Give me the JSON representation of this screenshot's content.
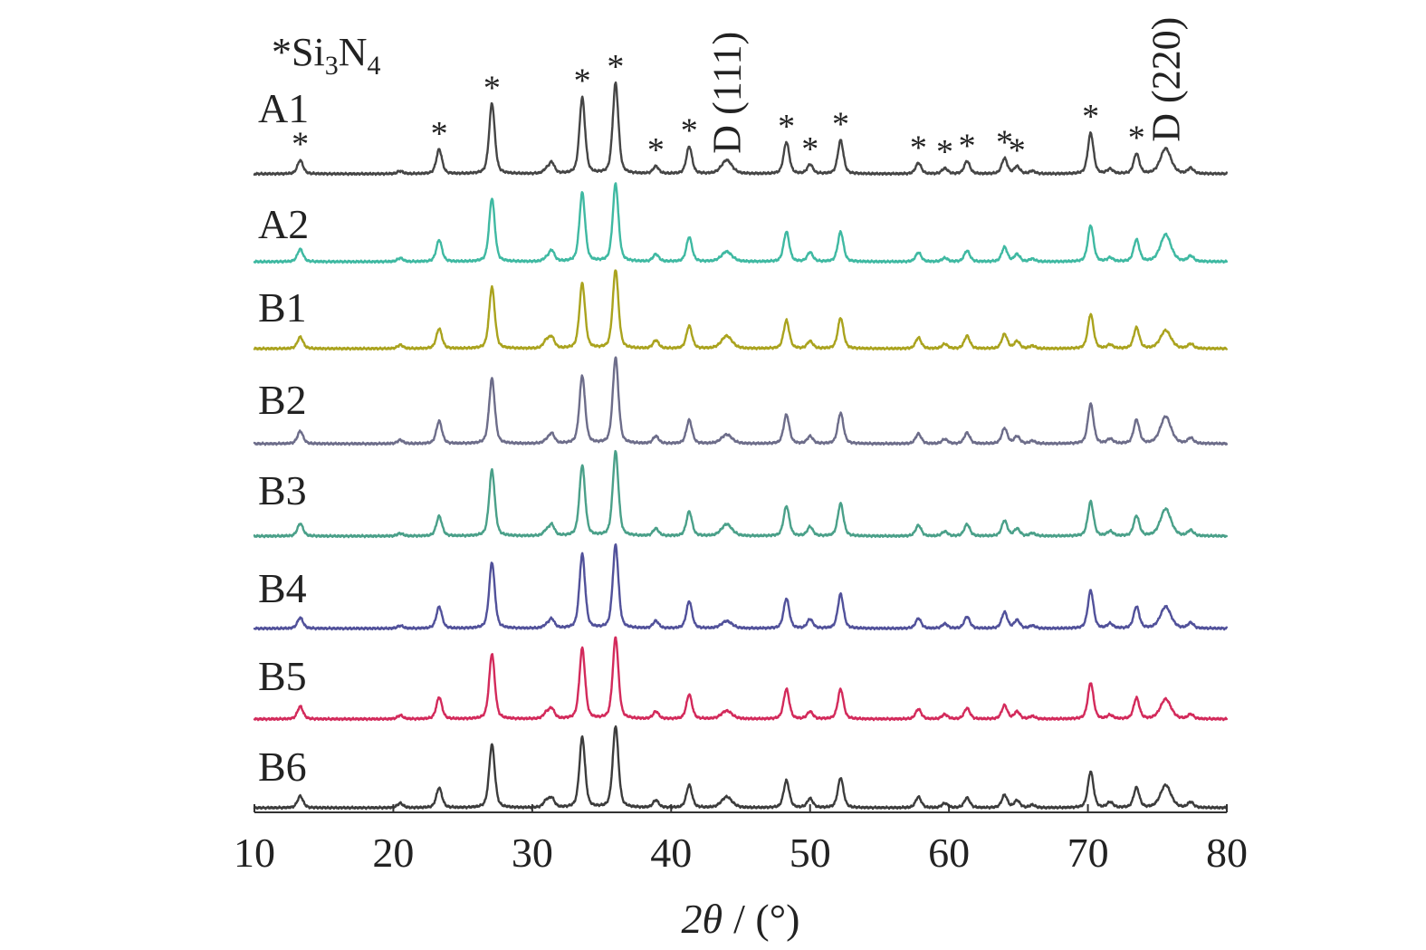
{
  "chart_data": {
    "type": "line",
    "stacked": true,
    "title": "",
    "xlabel": {
      "symbol": "2θ",
      "unit": "/ (°)"
    },
    "ylabel": "",
    "xlim": [
      10,
      80
    ],
    "xticks": [
      10,
      20,
      30,
      40,
      50,
      60,
      70,
      80
    ],
    "grid": false,
    "legend_position": "top-left",
    "legend": {
      "marker": "*",
      "label_parts": [
        "Si",
        "3",
        "N",
        "4"
      ]
    },
    "peak_positions": [
      13.3,
      20.5,
      23.3,
      27.1,
      31.0,
      31.4,
      33.6,
      36.0,
      38.9,
      41.3,
      44.0,
      48.3,
      50.0,
      52.2,
      57.8,
      59.7,
      61.3,
      64.0,
      64.9,
      66.0,
      70.2,
      71.6,
      73.5,
      75.6,
      77.4
    ],
    "series": [
      {
        "name": "A1",
        "color": "#454545",
        "intensity": [
          15,
          3,
          27,
          78,
          4,
          12,
          84,
          100,
          8,
          30,
          15,
          35,
          10,
          37,
          12,
          6,
          14,
          17,
          8,
          3,
          45,
          5,
          22,
          28,
          6
        ]
      },
      {
        "name": "A2",
        "color": "#3fb9a2",
        "intensity": [
          14,
          4,
          24,
          70,
          3,
          12,
          76,
          86,
          8,
          27,
          11,
          33,
          10,
          33,
          10,
          4,
          12,
          16,
          8,
          3,
          40,
          4,
          24,
          30,
          6
        ]
      },
      {
        "name": "B1",
        "color": "#aaa31e",
        "intensity": [
          13,
          4,
          22,
          68,
          8,
          12,
          72,
          87,
          9,
          25,
          14,
          31,
          8,
          34,
          12,
          5,
          14,
          16,
          8,
          3,
          38,
          4,
          23,
          20,
          5
        ]
      },
      {
        "name": "B2",
        "color": "#6d6d8a",
        "intensity": [
          14,
          4,
          25,
          72,
          3,
          11,
          75,
          95,
          8,
          26,
          10,
          32,
          8,
          34,
          11,
          5,
          12,
          17,
          8,
          3,
          44,
          5,
          26,
          30,
          6
        ]
      },
      {
        "name": "B3",
        "color": "#4aa089",
        "intensity": [
          14,
          3,
          22,
          73,
          5,
          12,
          78,
          93,
          8,
          27,
          13,
          33,
          10,
          36,
          12,
          5,
          13,
          17,
          8,
          3,
          38,
          5,
          22,
          30,
          6
        ]
      },
      {
        "name": "B4",
        "color": "#51519a",
        "intensity": [
          12,
          3,
          24,
          73,
          3,
          10,
          82,
          92,
          8,
          30,
          8,
          33,
          10,
          38,
          11,
          5,
          13,
          18,
          9,
          3,
          42,
          5,
          24,
          24,
          6
        ]
      },
      {
        "name": "B5",
        "color": "#d32a5b",
        "intensity": [
          14,
          4,
          24,
          72,
          6,
          11,
          78,
          90,
          8,
          27,
          9,
          33,
          8,
          33,
          11,
          5,
          12,
          15,
          8,
          3,
          40,
          4,
          23,
          22,
          5
        ]
      },
      {
        "name": "B6",
        "color": "#3c3c3c",
        "intensity": [
          13,
          5,
          22,
          70,
          7,
          10,
          78,
          90,
          8,
          25,
          12,
          30,
          10,
          33,
          12,
          5,
          11,
          14,
          8,
          3,
          40,
          6,
          22,
          25,
          6
        ]
      }
    ],
    "si3n4_marker": "*",
    "si3n4_marked_peaks": [
      13.3,
      23.3,
      27.1,
      33.6,
      36.0,
      38.9,
      41.3,
      48.3,
      50.0,
      52.2,
      57.8,
      59.7,
      61.3,
      64.0,
      64.9,
      70.2,
      73.5
    ],
    "annotations": [
      {
        "text": "D (111)",
        "x": 44.0
      },
      {
        "text": "D (220)",
        "x": 75.6
      }
    ]
  }
}
